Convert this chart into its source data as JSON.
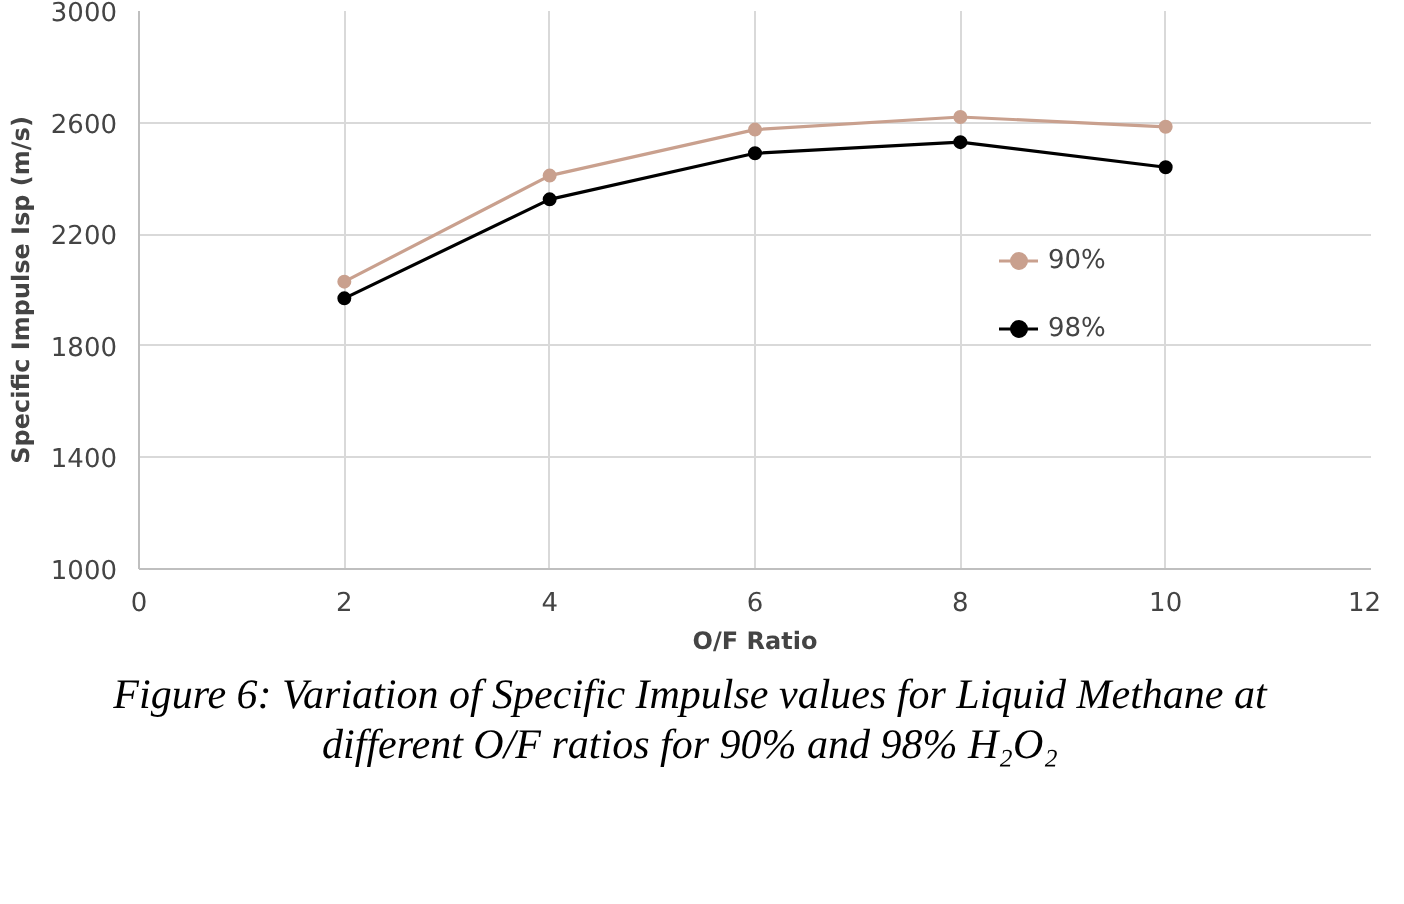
{
  "chart_data": {
    "type": "line",
    "xlabel": "O/F Ratio",
    "ylabel": "Specific Impulse Isp (m/s)",
    "x": [
      2,
      4,
      6,
      8,
      10
    ],
    "series": [
      {
        "name": "90%",
        "color": "#c9a08e",
        "values": [
          2030,
          2410,
          2575,
          2620,
          2585
        ]
      },
      {
        "name": "98%",
        "color": "#000000",
        "values": [
          1970,
          2325,
          2490,
          2530,
          2440
        ]
      }
    ],
    "xlim": [
      0,
      12
    ],
    "xticks": [
      0,
      2,
      4,
      6,
      8,
      10,
      12
    ],
    "ylim": [
      1000,
      3000
    ],
    "yticks": [
      1000,
      1400,
      1800,
      2200,
      2600,
      3000
    ],
    "grid": true,
    "legend": "right",
    "marker": "circle",
    "line_style": "solid",
    "annotations": [
      "Figure 6: Variation of Specific Impulse values for Liquid Methane at different O/F ratios for 90% and 98% H₂O₂"
    ]
  }
}
